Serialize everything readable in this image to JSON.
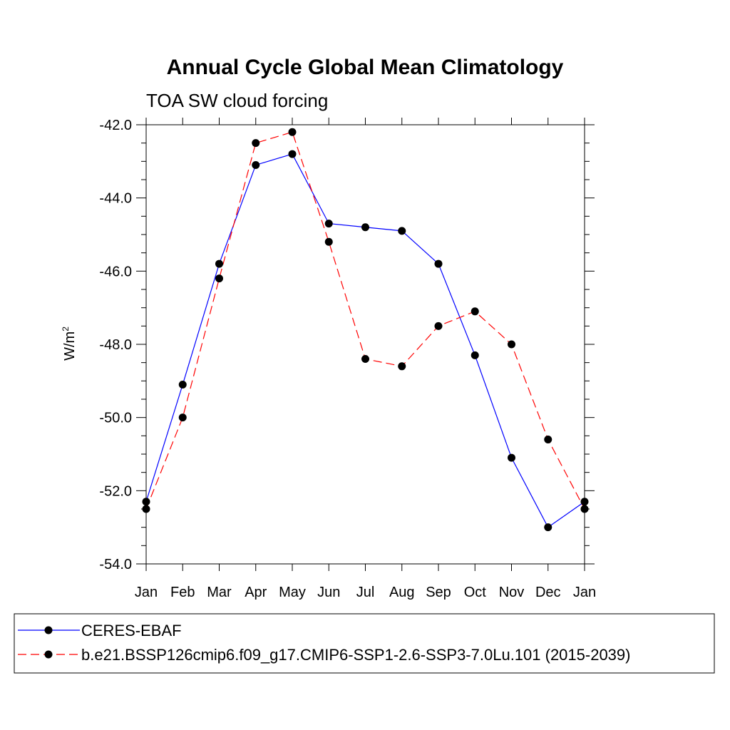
{
  "chart_data": {
    "type": "line",
    "title": "Annual Cycle Global Mean Climatology",
    "subtitle": "TOA SW cloud forcing",
    "ylabel": "W/m",
    "ylabel_superscript": "2",
    "xlabel": "",
    "categories": [
      "Jan",
      "Feb",
      "Mar",
      "Apr",
      "May",
      "Jun",
      "Jul",
      "Aug",
      "Sep",
      "Oct",
      "Nov",
      "Dec",
      "Jan"
    ],
    "ylim": [
      -54.0,
      -42.0
    ],
    "yticks": [
      -42.0,
      -44.0,
      -46.0,
      -48.0,
      -50.0,
      -52.0,
      -54.0
    ],
    "ytick_labels": [
      "-42.0",
      "-44.0",
      "-46.0",
      "-48.0",
      "-50.0",
      "-52.0",
      "-54.0"
    ],
    "grid": false,
    "legend_position": "bottom",
    "series": [
      {
        "name": "CERES-EBAF",
        "color": "#0000ff",
        "dash": "solid",
        "values": [
          -52.3,
          -49.1,
          -45.8,
          -43.1,
          -42.8,
          -44.7,
          -44.8,
          -44.9,
          -45.8,
          -48.3,
          -51.1,
          -53.0,
          -52.3
        ]
      },
      {
        "name": "b.e21.BSSP126cmip6.f09_g17.CMIP6-SSP1-2.6-SSP3-7.0Lu.101 (2015-2039)",
        "color": "#ff0000",
        "dash": "dashed",
        "values": [
          -52.5,
          -50.0,
          -46.2,
          -42.5,
          -42.2,
          -45.2,
          -48.4,
          -48.6,
          -47.5,
          -47.1,
          -48.0,
          -50.6,
          -52.5
        ]
      }
    ]
  }
}
